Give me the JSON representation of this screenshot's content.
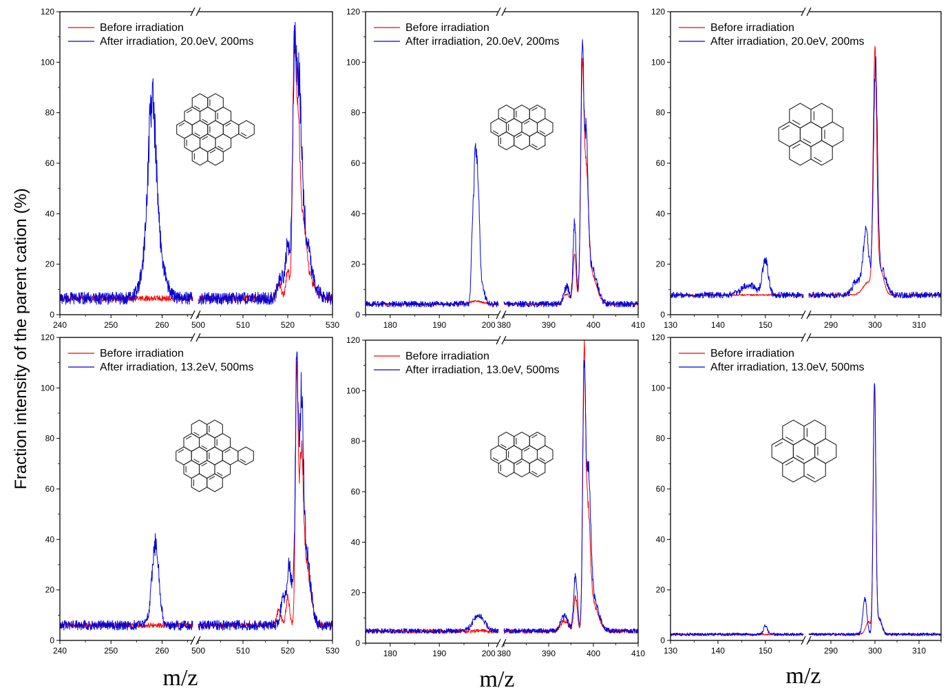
{
  "figure": {
    "ylabel": "Fraction intensity of the parent cation (%)",
    "xlabel_left": "m/z",
    "xlabel_middle": "m/z",
    "xlabel_right": "m/z"
  },
  "colors": {
    "before": "#ff0000",
    "after": "#0000dd",
    "axis": "#000000"
  },
  "chart_data": [
    {
      "type": "line",
      "panel": "top-left",
      "broken_axis": true,
      "x_segments": [
        [
          240,
          266
        ],
        [
          500,
          530
        ]
      ],
      "x_ticks": [
        [
          240,
          250,
          260
        ],
        [
          500,
          510,
          520,
          530
        ]
      ],
      "ylim": [
        0,
        120
      ],
      "y_ticks": [
        0,
        20,
        40,
        60,
        80,
        100,
        120
      ],
      "legend": [
        "Before irradiation",
        "After irradiation, 20.0eV, 200ms"
      ],
      "legend_position": "top-left",
      "series": [
        {
          "name": "Before irradiation",
          "color": "red",
          "baseline": 6.5,
          "noise": 1.2,
          "peaks": [
            [
              518,
              6,
              0.5
            ],
            [
              520,
              11,
              0.4
            ],
            [
              521.4,
              85,
              0.35
            ],
            [
              522.2,
              55,
              0.45
            ],
            [
              523.2,
              30,
              0.9
            ],
            [
              525,
              5,
              1.5
            ]
          ]
        },
        {
          "name": "After irradiation, 20.0eV, 200ms",
          "color": "blue",
          "baseline": 6.5,
          "noise": 2.5,
          "peaks": [
            [
              258,
              48,
              0.7
            ],
            [
              258.3,
              32,
              1.5
            ],
            [
              518.5,
              8,
              0.7
            ],
            [
              520,
              20,
              0.5
            ],
            [
              521.4,
              70,
              0.4
            ],
            [
              522.4,
              70,
              0.6
            ],
            [
              523.5,
              25,
              1.2
            ],
            [
              525,
              5,
              1.5
            ]
          ]
        }
      ]
    },
    {
      "type": "line",
      "panel": "top-middle",
      "broken_axis": true,
      "x_segments": [
        [
          175,
          202
        ],
        [
          380,
          410
        ]
      ],
      "x_ticks": [
        [
          180,
          190,
          200
        ],
        [
          380,
          390,
          400,
          410
        ]
      ],
      "ylim": [
        0,
        120
      ],
      "y_ticks": [
        0,
        20,
        40,
        60,
        80,
        100,
        120
      ],
      "legend": [
        "Before irradiation",
        "After irradiation, 20.0eV, 200ms"
      ],
      "legend_position": "top-left",
      "series": [
        {
          "name": "Before irradiation",
          "color": "red",
          "baseline": 4.2,
          "noise": 0.4,
          "peaks": [
            [
              197.5,
              1.2,
              1.2
            ],
            [
              394,
              4,
              0.7
            ],
            [
              395.8,
              20,
              0.35
            ],
            [
              397.5,
              85,
              0.35
            ],
            [
              398.4,
              45,
              0.5
            ],
            [
              399.5,
              12,
              1.2
            ]
          ]
        },
        {
          "name": "After irradiation, 20.0eV, 200ms",
          "color": "blue",
          "baseline": 4.2,
          "noise": 1.2,
          "peaks": [
            [
              196.7,
              24,
              0.25
            ],
            [
              197.3,
              55,
              0.3
            ],
            [
              197.9,
              36,
              0.3
            ],
            [
              198.5,
              8,
              0.6
            ],
            [
              394,
              7,
              0.6
            ],
            [
              395.8,
              32,
              0.35
            ],
            [
              397.5,
              95,
              0.35
            ],
            [
              398.4,
              55,
              0.4
            ],
            [
              399.5,
              15,
              1.2
            ]
          ]
        }
      ]
    },
    {
      "type": "line",
      "panel": "top-right",
      "broken_axis": true,
      "x_segments": [
        [
          130,
          158
        ],
        [
          285,
          315
        ]
      ],
      "x_ticks": [
        [
          130,
          140,
          150
        ],
        [
          290,
          300,
          310
        ]
      ],
      "ylim": [
        0,
        120
      ],
      "y_ticks": [
        0,
        20,
        40,
        60,
        80,
        100,
        120
      ],
      "legend": [
        "Before irradiation",
        "After irradiation, 20.0eV, 200ms"
      ],
      "legend_position": "top-left",
      "series": [
        {
          "name": "Before irradiation",
          "color": "red",
          "baseline": 7.8,
          "noise": 0.3,
          "peaks": [
            [
              298.5,
              5,
              1.2
            ],
            [
              300,
              92,
              0.4
            ],
            [
              301.2,
              10,
              0.8
            ]
          ]
        },
        {
          "name": "After irradiation, 20.0eV, 200ms",
          "color": "blue",
          "baseline": 7.8,
          "noise": 1.2,
          "peaks": [
            [
              146.5,
              4,
              1.5
            ],
            [
              150,
              14,
              0.6
            ],
            [
              296,
              6,
              1.0
            ],
            [
              298,
              26,
              0.6
            ],
            [
              300.1,
              88,
              0.45
            ],
            [
              301.5,
              10,
              1.0
            ]
          ]
        }
      ]
    },
    {
      "type": "line",
      "panel": "bottom-left",
      "broken_axis": true,
      "x_segments": [
        [
          240,
          266
        ],
        [
          500,
          530
        ]
      ],
      "x_ticks": [
        [
          240,
          250,
          260
        ],
        [
          500,
          510,
          520,
          530
        ]
      ],
      "ylim": [
        0,
        120
      ],
      "y_ticks": [
        0,
        20,
        40,
        60,
        80,
        100,
        120
      ],
      "legend": [
        "Before irradiation",
        "After irradiation, 13.2eV, 500ms"
      ],
      "legend_position": "top-left",
      "series": [
        {
          "name": "Before irradiation",
          "color": "red",
          "baseline": 6,
          "noise": 1.0,
          "peaks": [
            [
              518,
              6,
              0.5
            ],
            [
              520,
              11,
              0.4
            ],
            [
              522,
              94,
              0.3
            ],
            [
              523,
              55,
              0.45
            ],
            [
              524,
              25,
              1.0
            ]
          ]
        },
        {
          "name": "After irradiation, 13.2eV, 500ms",
          "color": "blue",
          "baseline": 6,
          "noise": 2.0,
          "peaks": [
            [
              258.7,
              32,
              0.7
            ],
            [
              519,
              10,
              0.6
            ],
            [
              520.2,
              20,
              0.4
            ],
            [
              521.2,
              16,
              0.5
            ],
            [
              522,
              90,
              0.3
            ],
            [
              523,
              74,
              0.45
            ],
            [
              524,
              30,
              1.0
            ]
          ]
        }
      ]
    },
    {
      "type": "line",
      "panel": "bottom-middle",
      "broken_axis": true,
      "x_segments": [
        [
          175,
          202
        ],
        [
          380,
          410
        ]
      ],
      "x_ticks": [
        [
          180,
          190,
          200
        ],
        [
          380,
          390,
          400,
          410
        ]
      ],
      "ylim": [
        0,
        120
      ],
      "y_ticks": [
        0,
        20,
        40,
        60,
        80,
        100,
        120
      ],
      "legend": [
        "Before irradiation",
        "After irradiation, 13.0eV, 500ms"
      ],
      "legend_position": "top-left",
      "series": [
        {
          "name": "Before irradiation",
          "color": "red",
          "baseline": 4.8,
          "noise": 0.8,
          "peaks": [
            [
              393.5,
              4,
              0.8
            ],
            [
              396,
              13,
              0.4
            ],
            [
              397.9,
              95,
              0.3
            ],
            [
              398.7,
              45,
              0.55
            ],
            [
              400,
              10,
              1.2
            ]
          ]
        },
        {
          "name": "After irradiation, 13.0eV, 500ms",
          "color": "blue",
          "baseline": 4.8,
          "noise": 1.0,
          "peaks": [
            [
              198,
              6,
              1.2
            ],
            [
              393.5,
              6,
              0.8
            ],
            [
              396,
              22,
              0.4
            ],
            [
              397.9,
              90,
              0.3
            ],
            [
              398.8,
              58,
              0.55
            ],
            [
              400,
              12,
              1.2
            ]
          ]
        }
      ]
    },
    {
      "type": "line",
      "panel": "bottom-right",
      "broken_axis": true,
      "x_segments": [
        [
          130,
          158
        ],
        [
          285,
          315
        ]
      ],
      "x_ticks": [
        [
          130,
          140,
          150
        ],
        [
          290,
          300,
          310
        ]
      ],
      "ylim": [
        0,
        120
      ],
      "y_ticks": [
        0,
        20,
        40,
        60,
        80,
        100,
        120
      ],
      "legend": [
        "Before irradiation",
        "After irradiation, 13.0eV, 500ms"
      ],
      "legend_position": "top-left",
      "series": [
        {
          "name": "Before irradiation",
          "color": "red",
          "baseline": 2.4,
          "noise": 0.3,
          "peaks": [
            [
              298.5,
              5,
              0.6
            ],
            [
              299.9,
              98,
              0.3
            ],
            [
              301,
              6,
              0.6
            ]
          ]
        },
        {
          "name": "After irradiation, 13.0eV, 500ms",
          "color": "blue",
          "baseline": 2.4,
          "noise": 0.6,
          "peaks": [
            [
              150,
              3.5,
              0.4
            ],
            [
              297.7,
              14,
              0.45
            ],
            [
              299.9,
              98,
              0.3
            ],
            [
              301,
              6,
              0.6
            ]
          ]
        }
      ]
    }
  ]
}
